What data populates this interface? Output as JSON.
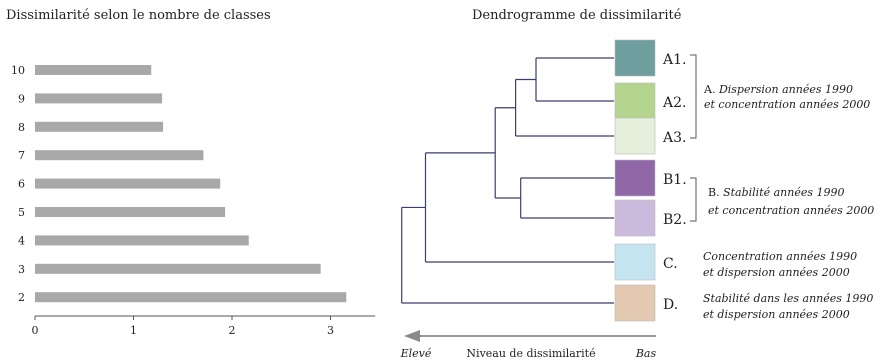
{
  "chart_data": [
    {
      "type": "bar",
      "orientation": "horizontal",
      "title": "Dissimilarité selon le nombre de classes",
      "categories": [
        "10",
        "9",
        "8",
        "7",
        "6",
        "5",
        "4",
        "3",
        "2"
      ],
      "values": [
        1.18,
        1.29,
        1.3,
        1.71,
        1.88,
        1.93,
        2.17,
        2.9,
        3.16
      ],
      "xticks": [
        "0",
        "1",
        "2",
        "3"
      ],
      "xlim": [
        0,
        3.25
      ],
      "bar_color": "#a8a8a8",
      "grid": false
    },
    {
      "type": "dendrogram",
      "title": "Dendrogramme de dissimilarité",
      "leaves": [
        {
          "id": "A1",
          "label": "A1.",
          "color": "#6e9e9e"
        },
        {
          "id": "A2",
          "label": "A2.",
          "color": "#b3d48e"
        },
        {
          "id": "A3",
          "label": "A3.",
          "color": "#e4efdc"
        },
        {
          "id": "B1",
          "label": "B1.",
          "color": "#9068a8"
        },
        {
          "id": "B2",
          "label": "B2.",
          "color": "#cbbadb"
        },
        {
          "id": "C",
          "label": "C.",
          "color": "#c4e4f0"
        },
        {
          "id": "D",
          "label": "D.",
          "color": "#e3c8b2"
        }
      ],
      "merges": [
        {
          "children": [
            "A1",
            "A2"
          ],
          "height": 0.5
        },
        {
          "children": [
            "A1A2",
            "A3"
          ],
          "height": 0.62
        },
        {
          "children": [
            "B1",
            "B2"
          ],
          "height": 0.59
        },
        {
          "children": [
            "A",
            "B"
          ],
          "height": 0.74
        },
        {
          "children": [
            "AB",
            "C"
          ],
          "height": 1.15
        },
        {
          "children": [
            "ABC",
            "D"
          ],
          "height": 1.29
        }
      ],
      "groups": [
        {
          "letter": "A.",
          "desc_line1": "Dispersion années 1990",
          "desc_line2": "et concentration années 2000"
        },
        {
          "letter": "B.",
          "desc_line1": "Stabilité années 1990",
          "desc_line2": "et concentration années 2000"
        },
        {
          "letter": "",
          "desc_line1": "Concentration années 1990",
          "desc_line2": "et dispersion années 2000"
        },
        {
          "letter": "",
          "desc_line1": "Stabilité dans les années 1990",
          "desc_line2": "et dispersion années 2000"
        }
      ],
      "axis": {
        "left_label": "Elevé",
        "center_label": "Niveau de dissimilarité",
        "right_label": "Bas"
      },
      "line_color": "#3a3f6e"
    }
  ]
}
